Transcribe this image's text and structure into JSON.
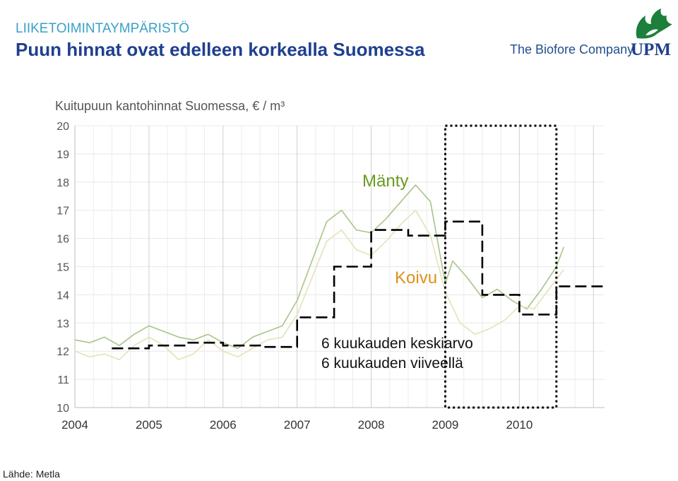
{
  "header": {
    "kicker": "LIIKETOIMINTAYMPÄRISTÖ",
    "title": "Puun hinnat ovat edelleen korkealla Suomessa",
    "tagline": "The Biofore Company",
    "logo_text": "UPM"
  },
  "source": "Lähde: Metla",
  "chart_data": {
    "type": "line",
    "title": "Kuitupuun kantohinnat Suomessa, € / m³",
    "xlabel": "",
    "ylabel": "",
    "ylim": [
      10,
      20
    ],
    "xlim": [
      2004,
      2011.15
    ],
    "yticks": [
      "10",
      "11",
      "12",
      "13",
      "14",
      "15",
      "16",
      "17",
      "18",
      "19",
      "20"
    ],
    "xticks": [
      "2004",
      "2005",
      "2006",
      "2007",
      "2008",
      "2009",
      "2010"
    ],
    "grid": true,
    "colors": {
      "manty": "#a9c48a",
      "koivu": "#e4e2b8",
      "average": "#000000",
      "highlight": "#000000"
    },
    "annotations": {
      "manty": "Mänty",
      "koivu": "Koivu",
      "average_line1": "6 kuukauden keskiarvo",
      "average_line2": "6 kuukauden viiveellä"
    },
    "highlight_range": {
      "x": [
        2009.0,
        2010.5
      ],
      "y": [
        10,
        20
      ]
    },
    "series": [
      {
        "name": "Mänty",
        "style": "thin-line",
        "x": [
          2004.0,
          2004.2,
          2004.4,
          2004.6,
          2004.8,
          2005.0,
          2005.2,
          2005.4,
          2005.6,
          2005.8,
          2006.0,
          2006.2,
          2006.4,
          2006.6,
          2006.8,
          2007.0,
          2007.2,
          2007.4,
          2007.6,
          2007.8,
          2008.0,
          2008.2,
          2008.4,
          2008.6,
          2008.8,
          2009.0,
          2009.1,
          2009.3,
          2009.5,
          2009.7,
          2009.9,
          2010.1,
          2010.3,
          2010.5,
          2010.6
        ],
        "y": [
          12.4,
          12.3,
          12.5,
          12.2,
          12.6,
          12.9,
          12.7,
          12.5,
          12.4,
          12.6,
          12.3,
          12.1,
          12.5,
          12.7,
          12.9,
          13.8,
          15.2,
          16.6,
          17.0,
          16.3,
          16.2,
          16.7,
          17.3,
          17.9,
          17.3,
          14.4,
          15.2,
          14.6,
          13.9,
          14.2,
          13.8,
          13.5,
          14.2,
          15.0,
          15.7
        ]
      },
      {
        "name": "Koivu",
        "style": "thin-line",
        "x": [
          2004.0,
          2004.2,
          2004.4,
          2004.6,
          2004.8,
          2005.0,
          2005.2,
          2005.4,
          2005.6,
          2005.8,
          2006.0,
          2006.2,
          2006.4,
          2006.6,
          2006.8,
          2007.0,
          2007.2,
          2007.4,
          2007.6,
          2007.8,
          2008.0,
          2008.2,
          2008.4,
          2008.6,
          2008.8,
          2009.0,
          2009.2,
          2009.4,
          2009.6,
          2009.8,
          2010.0,
          2010.2,
          2010.4,
          2010.6
        ],
        "y": [
          12.0,
          11.8,
          11.9,
          11.7,
          12.2,
          12.5,
          12.2,
          11.7,
          11.9,
          12.4,
          12.0,
          11.8,
          12.1,
          12.4,
          12.5,
          13.3,
          14.6,
          15.9,
          16.3,
          15.6,
          15.4,
          15.9,
          16.5,
          17.0,
          16.1,
          14.1,
          13.0,
          12.6,
          12.8,
          13.1,
          13.6,
          13.5,
          14.2,
          14.9
        ]
      },
      {
        "name": "6 kuukauden keskiarvo",
        "style": "dashed-step",
        "x": [
          2004.5,
          2005.0,
          2005.0,
          2005.5,
          2005.5,
          2006.0,
          2006.0,
          2006.5,
          2006.5,
          2007.0,
          2007.0,
          2007.5,
          2007.5,
          2008.0,
          2008.0,
          2008.5,
          2008.5,
          2009.0,
          2009.0,
          2009.5,
          2009.5,
          2010.0,
          2010.0,
          2010.5,
          2010.5,
          2011.15
        ],
        "y": [
          12.1,
          12.1,
          12.2,
          12.2,
          12.3,
          12.3,
          12.2,
          12.2,
          12.15,
          12.15,
          13.2,
          13.2,
          15.0,
          15.0,
          16.3,
          16.3,
          16.1,
          16.1,
          16.6,
          16.6,
          14.0,
          14.0,
          13.3,
          13.3,
          14.3,
          14.3
        ]
      }
    ]
  }
}
